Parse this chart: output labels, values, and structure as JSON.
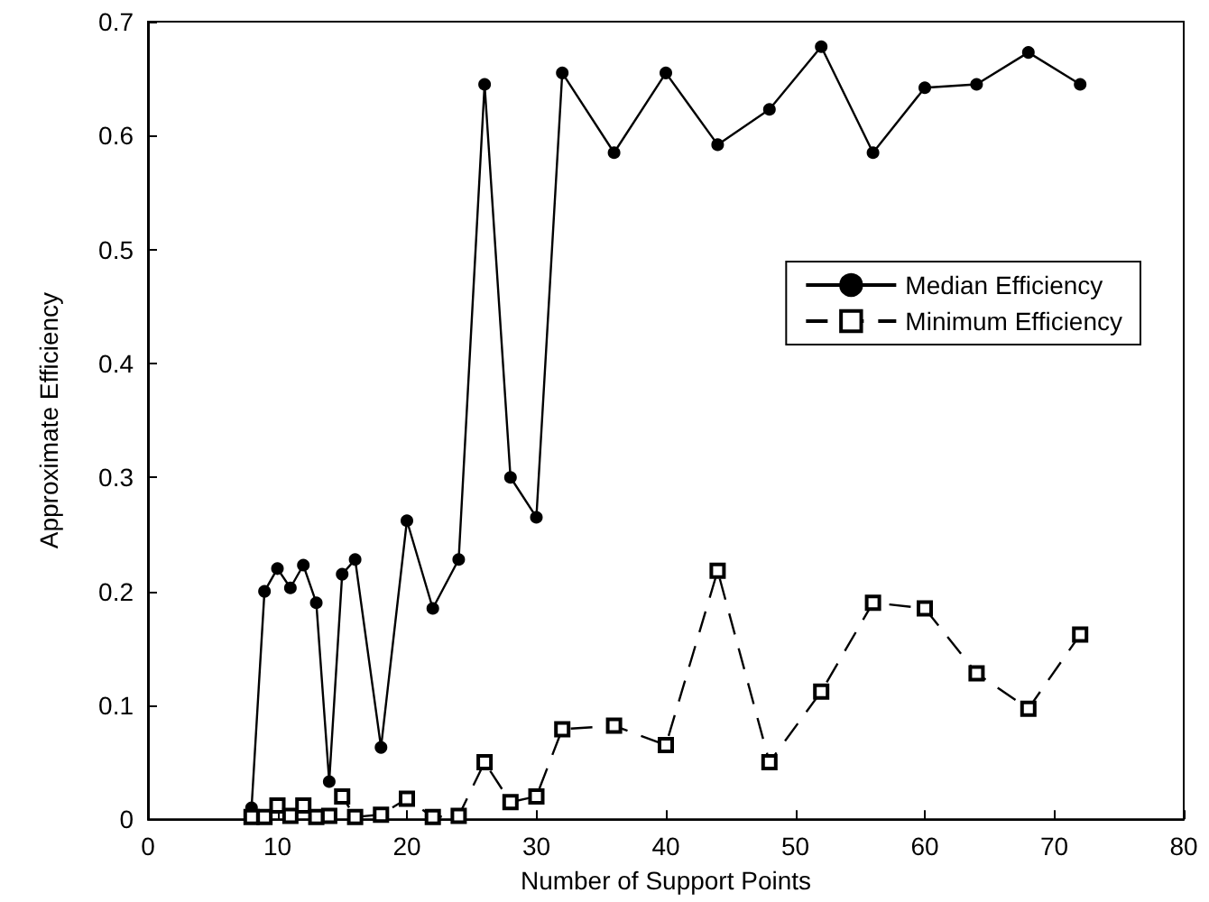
{
  "chart_data": {
    "type": "line",
    "xlabel": "Number of Support Points",
    "ylabel": "Approximate Efficiency",
    "x": [
      8,
      9,
      10,
      11,
      12,
      13,
      14,
      15,
      16,
      18,
      20,
      22,
      24,
      26,
      28,
      30,
      32,
      36,
      40,
      44,
      48,
      52,
      56,
      60,
      64,
      68,
      72
    ],
    "series": [
      {
        "name": "Median Efficiency",
        "color": "#000000",
        "marker": "circle",
        "line_style": "solid",
        "values": [
          0.01,
          0.2,
          0.22,
          0.203,
          0.223,
          0.19,
          0.033,
          0.215,
          0.228,
          0.063,
          0.262,
          0.185,
          0.228,
          0.645,
          0.3,
          0.265,
          0.655,
          0.585,
          0.655,
          0.592,
          0.623,
          0.678,
          0.585,
          0.642,
          0.645,
          0.673,
          0.645
        ]
      },
      {
        "name": "Minimum Efficiency",
        "color": "#000000",
        "marker": "square",
        "line_style": "dashed",
        "values": [
          0.002,
          0.002,
          0.012,
          0.003,
          0.012,
          0.002,
          0.003,
          0.02,
          0.002,
          0.004,
          0.018,
          0.002,
          0.003,
          0.05,
          0.015,
          0.02,
          0.079,
          0.082,
          0.065,
          0.218,
          0.05,
          0.112,
          0.19,
          0.185,
          0.128,
          0.097,
          0.162
        ]
      }
    ],
    "xlim": [
      0,
      80
    ],
    "xticks": [
      0,
      10,
      20,
      30,
      40,
      50,
      60,
      70,
      80
    ],
    "ylim": [
      0,
      0.7
    ],
    "yticks": [
      0,
      0.1,
      0.2,
      0.3,
      0.4,
      0.5,
      0.6,
      0.7
    ],
    "grid": false,
    "legend": "right"
  }
}
